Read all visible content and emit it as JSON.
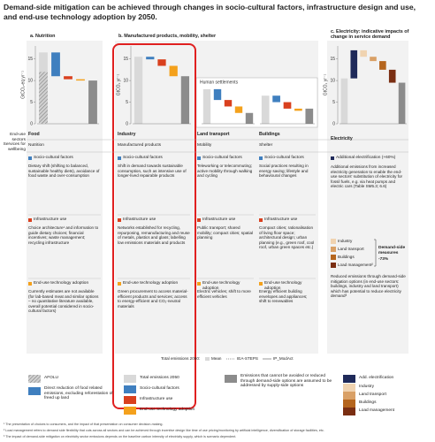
{
  "title": "Demand-side mitigation can be achieved through changes in socio-cultural factors, infrastructure design and use, and end-use technology adoption by 2050.",
  "panel_titles": [
    "a. Nutrition",
    "b. Manufactured products, mobility, shelter",
    "c. Electricity: indicative impacts of change in service demand"
  ],
  "human_settlements": "Human settlements",
  "row_headers": [
    "End-use sectors",
    "Services for wellbeing"
  ],
  "measure_labels": [
    "Socio-cultural factors",
    "Infrastructure use",
    "End-use technology adoption"
  ],
  "measure_colors": [
    "#3f7fbf",
    "#d9401e",
    "#f4a11c"
  ],
  "columns": [
    {
      "sector": "Food",
      "service": "Nutrition",
      "texts": [
        "Dietary shift (shifting to balanced, sustainable healthy diets), avoidance of food waste and over-consumption",
        "Choice architecture¹ and information to guide dietary choices; financial incentives; waste management; recycling infrastructure",
        "Currently estimates are not available (for lab-based meat and similar options – no quantitative literature available, overall potential considered in socio-cultural factors)"
      ]
    },
    {
      "sector": "Industry",
      "service": "Manufactured products",
      "texts": [
        "Shift in demand towards sustainable consumption, such as intensive use of longer-lived repairable products",
        "Networks established for recycling, repurposing, remanufacturing and reuse of metals, plastics and glass; labelling low emissions materials and products",
        "Green procurement to access material-efficient products and services; access to energy-efficient and CO₂-neutral materials"
      ]
    },
    {
      "sector": "Land transport",
      "service": "Mobility",
      "texts": [
        "Teleworking or telecommuting; active mobility through walking and cycling",
        "Public transport; shared mobility; compact cities; spatial planning",
        "Electric vehicles; shift to more efficient vehicles"
      ]
    },
    {
      "sector": "Buildings",
      "service": "Shelter",
      "texts": [
        "Social practices resulting in energy saving; lifestyle and behavioural changes",
        "Compact cities; rationalisation of living floor space; architectural design; urban planning (e.g., green roof, cool roof, urban green spaces etc.)",
        "Energy efficient building envelopes and appliances; shift to renewables"
      ]
    }
  ],
  "electricity": {
    "sector": "Electricity",
    "add_label": "Additional electrification (+60%)",
    "add_text": "Additional emissions from increased electricity generation to enable the end-use sectors' substitution of electricity for fossil fuels, e.g. via heat pumps and electric cars (Table SM5.3; 6.6)",
    "legend": [
      {
        "label": "Industry",
        "color": "#f0d3b0"
      },
      {
        "label": "Land transport",
        "color": "#d9a066"
      },
      {
        "label": "Buildings",
        "color": "#b5651d"
      },
      {
        "label": "Load management²",
        "color": "#7a2e12"
      }
    ],
    "demand_label": "Demand-side measures",
    "demand_value": "-73%",
    "reduce_text": "Reduced emissions through demand-side mitigation options (in end-use sectors: buildings, industry and land transport) which has potential to reduce electricity demand³"
  },
  "totals_legend": [
    "Total emissions 2050:",
    "Mean",
    "IEA-STEPS",
    "IP_ModAct"
  ],
  "legend": [
    {
      "label": "AFOLU",
      "color": "#bfbfbf"
    },
    {
      "label": "Direct reduction of food related emissions, excluding reforestation of freed up land",
      "color": "#3f7fbf"
    },
    {
      "label": "Total emissions 2050",
      "color": "#d9d9d9"
    },
    {
      "label": "Socio-cultural factors",
      "color": "#3f7fbf"
    },
    {
      "label": "Infrastructure use",
      "color": "#d9401e"
    },
    {
      "label": "End-use technology adoption",
      "color": "#f4a11c"
    },
    {
      "label": "Emissions that cannot be avoided or reduced through demand-side options are assumed to be addressed by supply-side options",
      "color": "#8c8c8c"
    },
    {
      "label": "Add. electrification",
      "color": "#1f2a5a"
    },
    {
      "label": "Industry",
      "color": "#f0d3b0"
    },
    {
      "label": "Land transport",
      "color": "#d9a066"
    },
    {
      "label": "Buildings",
      "color": "#b5651d"
    },
    {
      "label": "Load management",
      "color": "#7a2e12"
    }
  ],
  "footnotes": [
    "¹ The presentation of choices to consumers, and the impact of that presentation on consumer decision-making.",
    "² Load management refers to demand side flexibility that cuts across all sectors and can be achieved through incentive design like time of use pricing/monitoring by artificial intelligence, diversification of storage facilities, etc.",
    "³ The impact of demand-side mitigation on electricity sector emissions depends on the baseline carbon intensity of electricity supply, which is scenario dependent."
  ],
  "chart_data": [
    {
      "type": "waterfall",
      "ylabel": "GtCO₂-eq yr⁻¹",
      "ylim": [
        0,
        18
      ],
      "yticks": [
        0,
        5,
        10,
        15
      ],
      "afolu_value": 12,
      "values": [
        16.5,
        -5.5,
        -0.7,
        -0.3,
        10
      ],
      "colors": [
        "#d9d9d9",
        "#3f7fbf",
        "#d9401e",
        "#f4a11c",
        "#8c8c8c"
      ]
    },
    {
      "type": "waterfall",
      "ylabel": "GtCO₂ yr⁻¹",
      "ylim": [
        0,
        18
      ],
      "yticks": [
        0,
        5,
        10,
        15
      ],
      "values": [
        15.5,
        -0.6,
        -1.5,
        -2.4,
        11
      ],
      "colors": [
        "#d9d9d9",
        "#3f7fbf",
        "#d9401e",
        "#f4a11c",
        "#8c8c8c"
      ]
    },
    {
      "type": "waterfall",
      "ylim": [
        0,
        18
      ],
      "values": [
        8,
        -2.5,
        -1.5,
        -1.5,
        2.5
      ],
      "colors": [
        "#d9d9d9",
        "#3f7fbf",
        "#d9401e",
        "#f4a11c",
        "#8c8c8c"
      ]
    },
    {
      "type": "waterfall",
      "ylim": [
        0,
        18
      ],
      "values": [
        6.5,
        -1.5,
        -1.5,
        -0.5,
        3.5
      ],
      "colors": [
        "#d9d9d9",
        "#3f7fbf",
        "#d9401e",
        "#f4a11c",
        "#8c8c8c"
      ]
    },
    {
      "type": "waterfall",
      "ylabel": "GtCO₂ yr⁻¹",
      "ylim": [
        0,
        18
      ],
      "yticks": [
        0,
        5,
        10,
        15
      ],
      "values": [
        10.5,
        6.5,
        -1.5,
        -1,
        -2,
        -3,
        9.5
      ],
      "colors": [
        "#d9d9d9",
        "#1f2a5a",
        "#f0d3b0",
        "#d9a066",
        "#b5651d",
        "#7a2e12",
        "#8c8c8c"
      ]
    }
  ]
}
